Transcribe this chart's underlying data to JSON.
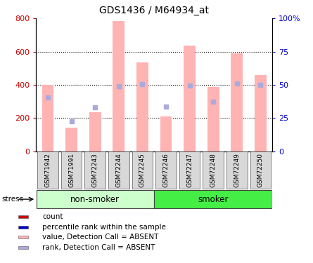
{
  "title": "GDS1436 / M64934_at",
  "samples": [
    "GSM71942",
    "GSM71991",
    "GSM72243",
    "GSM72244",
    "GSM72245",
    "GSM72246",
    "GSM72247",
    "GSM72248",
    "GSM72249",
    "GSM72250"
  ],
  "bar_values": [
    400,
    140,
    235,
    785,
    535,
    210,
    635,
    385,
    590,
    460
  ],
  "rank_values": [
    325,
    180,
    265,
    390,
    405,
    270,
    395,
    300,
    410,
    400
  ],
  "bar_color": "#ffb3b3",
  "rank_color": "#aaaadd",
  "ylim": [
    0,
    800
  ],
  "y2lim": [
    0,
    100
  ],
  "yticks_left": [
    0,
    200,
    400,
    600,
    800
  ],
  "yticks_right": [
    0,
    25,
    50,
    75,
    100
  ],
  "ytick_labels_right": [
    "0",
    "25",
    "50",
    "75",
    "100%"
  ],
  "non_smoker_label": "non-smoker",
  "smoker_label": "smoker",
  "stress_label": "stress",
  "group_color_ns": "#ccffcc",
  "group_color_s": "#44ee44",
  "legend_items": [
    {
      "label": "count",
      "color": "#cc0000"
    },
    {
      "label": "percentile rank within the sample",
      "color": "#0000cc"
    },
    {
      "label": "value, Detection Call = ABSENT",
      "color": "#ffb3b3"
    },
    {
      "label": "rank, Detection Call = ABSENT",
      "color": "#aaaadd"
    }
  ],
  "tick_color_left": "#cc0000",
  "tick_color_right": "#0000cc",
  "xtick_bg": "#d8d8d8",
  "dotted_lines": [
    200,
    400,
    600
  ]
}
